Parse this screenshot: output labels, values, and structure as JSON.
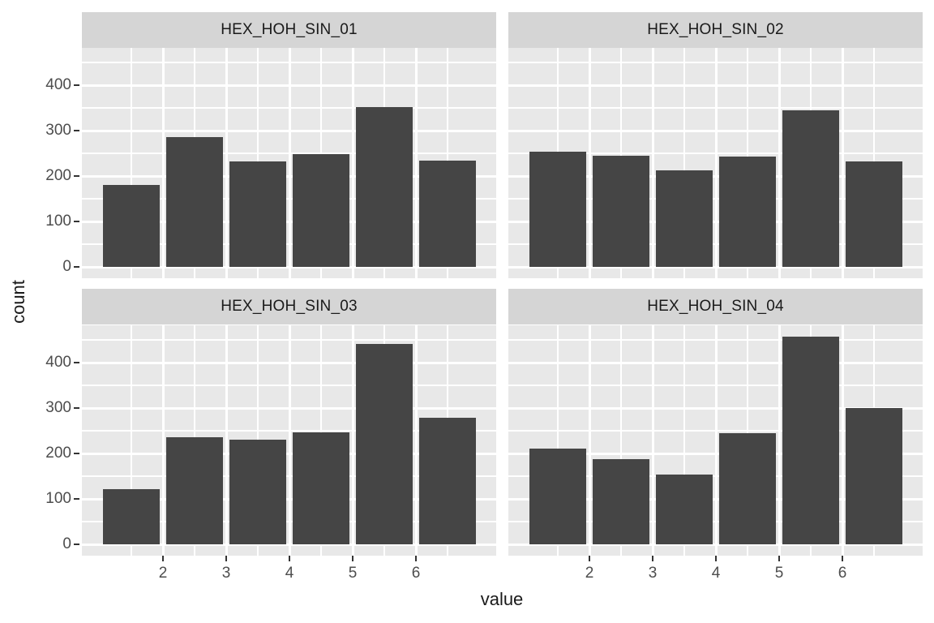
{
  "chart_data": {
    "type": "bar",
    "subtype": "faceted-histogram",
    "xlabel": "value",
    "ylabel": "count",
    "x_tick_labels": [
      "2",
      "3",
      "4",
      "5",
      "6"
    ],
    "y_tick_labels": [
      "0",
      "100",
      "200",
      "300",
      "400"
    ],
    "y_tick_values": [
      0,
      100,
      200,
      300,
      400
    ],
    "y_minor_values": [
      50,
      150,
      250,
      350,
      450
    ],
    "ylim": [
      0,
      480
    ],
    "bin_start": 1,
    "binwidth": 1,
    "bar_centers": [
      1.5,
      2.5,
      3.5,
      4.5,
      5.5,
      6.5
    ],
    "grid": "major+minor",
    "legend_position": "none",
    "panels": [
      {
        "label": "HEX_HOH_SIN_01",
        "counts": [
          181,
          286,
          233,
          248,
          352,
          234
        ]
      },
      {
        "label": "HEX_HOH_SIN_02",
        "counts": [
          254,
          245,
          213,
          243,
          344,
          233
        ]
      },
      {
        "label": "HEX_HOH_SIN_03",
        "counts": [
          121,
          236,
          231,
          247,
          441,
          279
        ]
      },
      {
        "label": "HEX_HOH_SIN_04",
        "counts": [
          210,
          188,
          153,
          245,
          458,
          300
        ]
      }
    ],
    "colors": {
      "bar": "#454545",
      "panel_bg": "#e8e8e8",
      "strip_bg": "#d5d5d5",
      "grid": "#ffffff",
      "tick_mark": "#333333",
      "tick_label": "#4d4d4d",
      "title_text": "#1a1a1a"
    }
  }
}
